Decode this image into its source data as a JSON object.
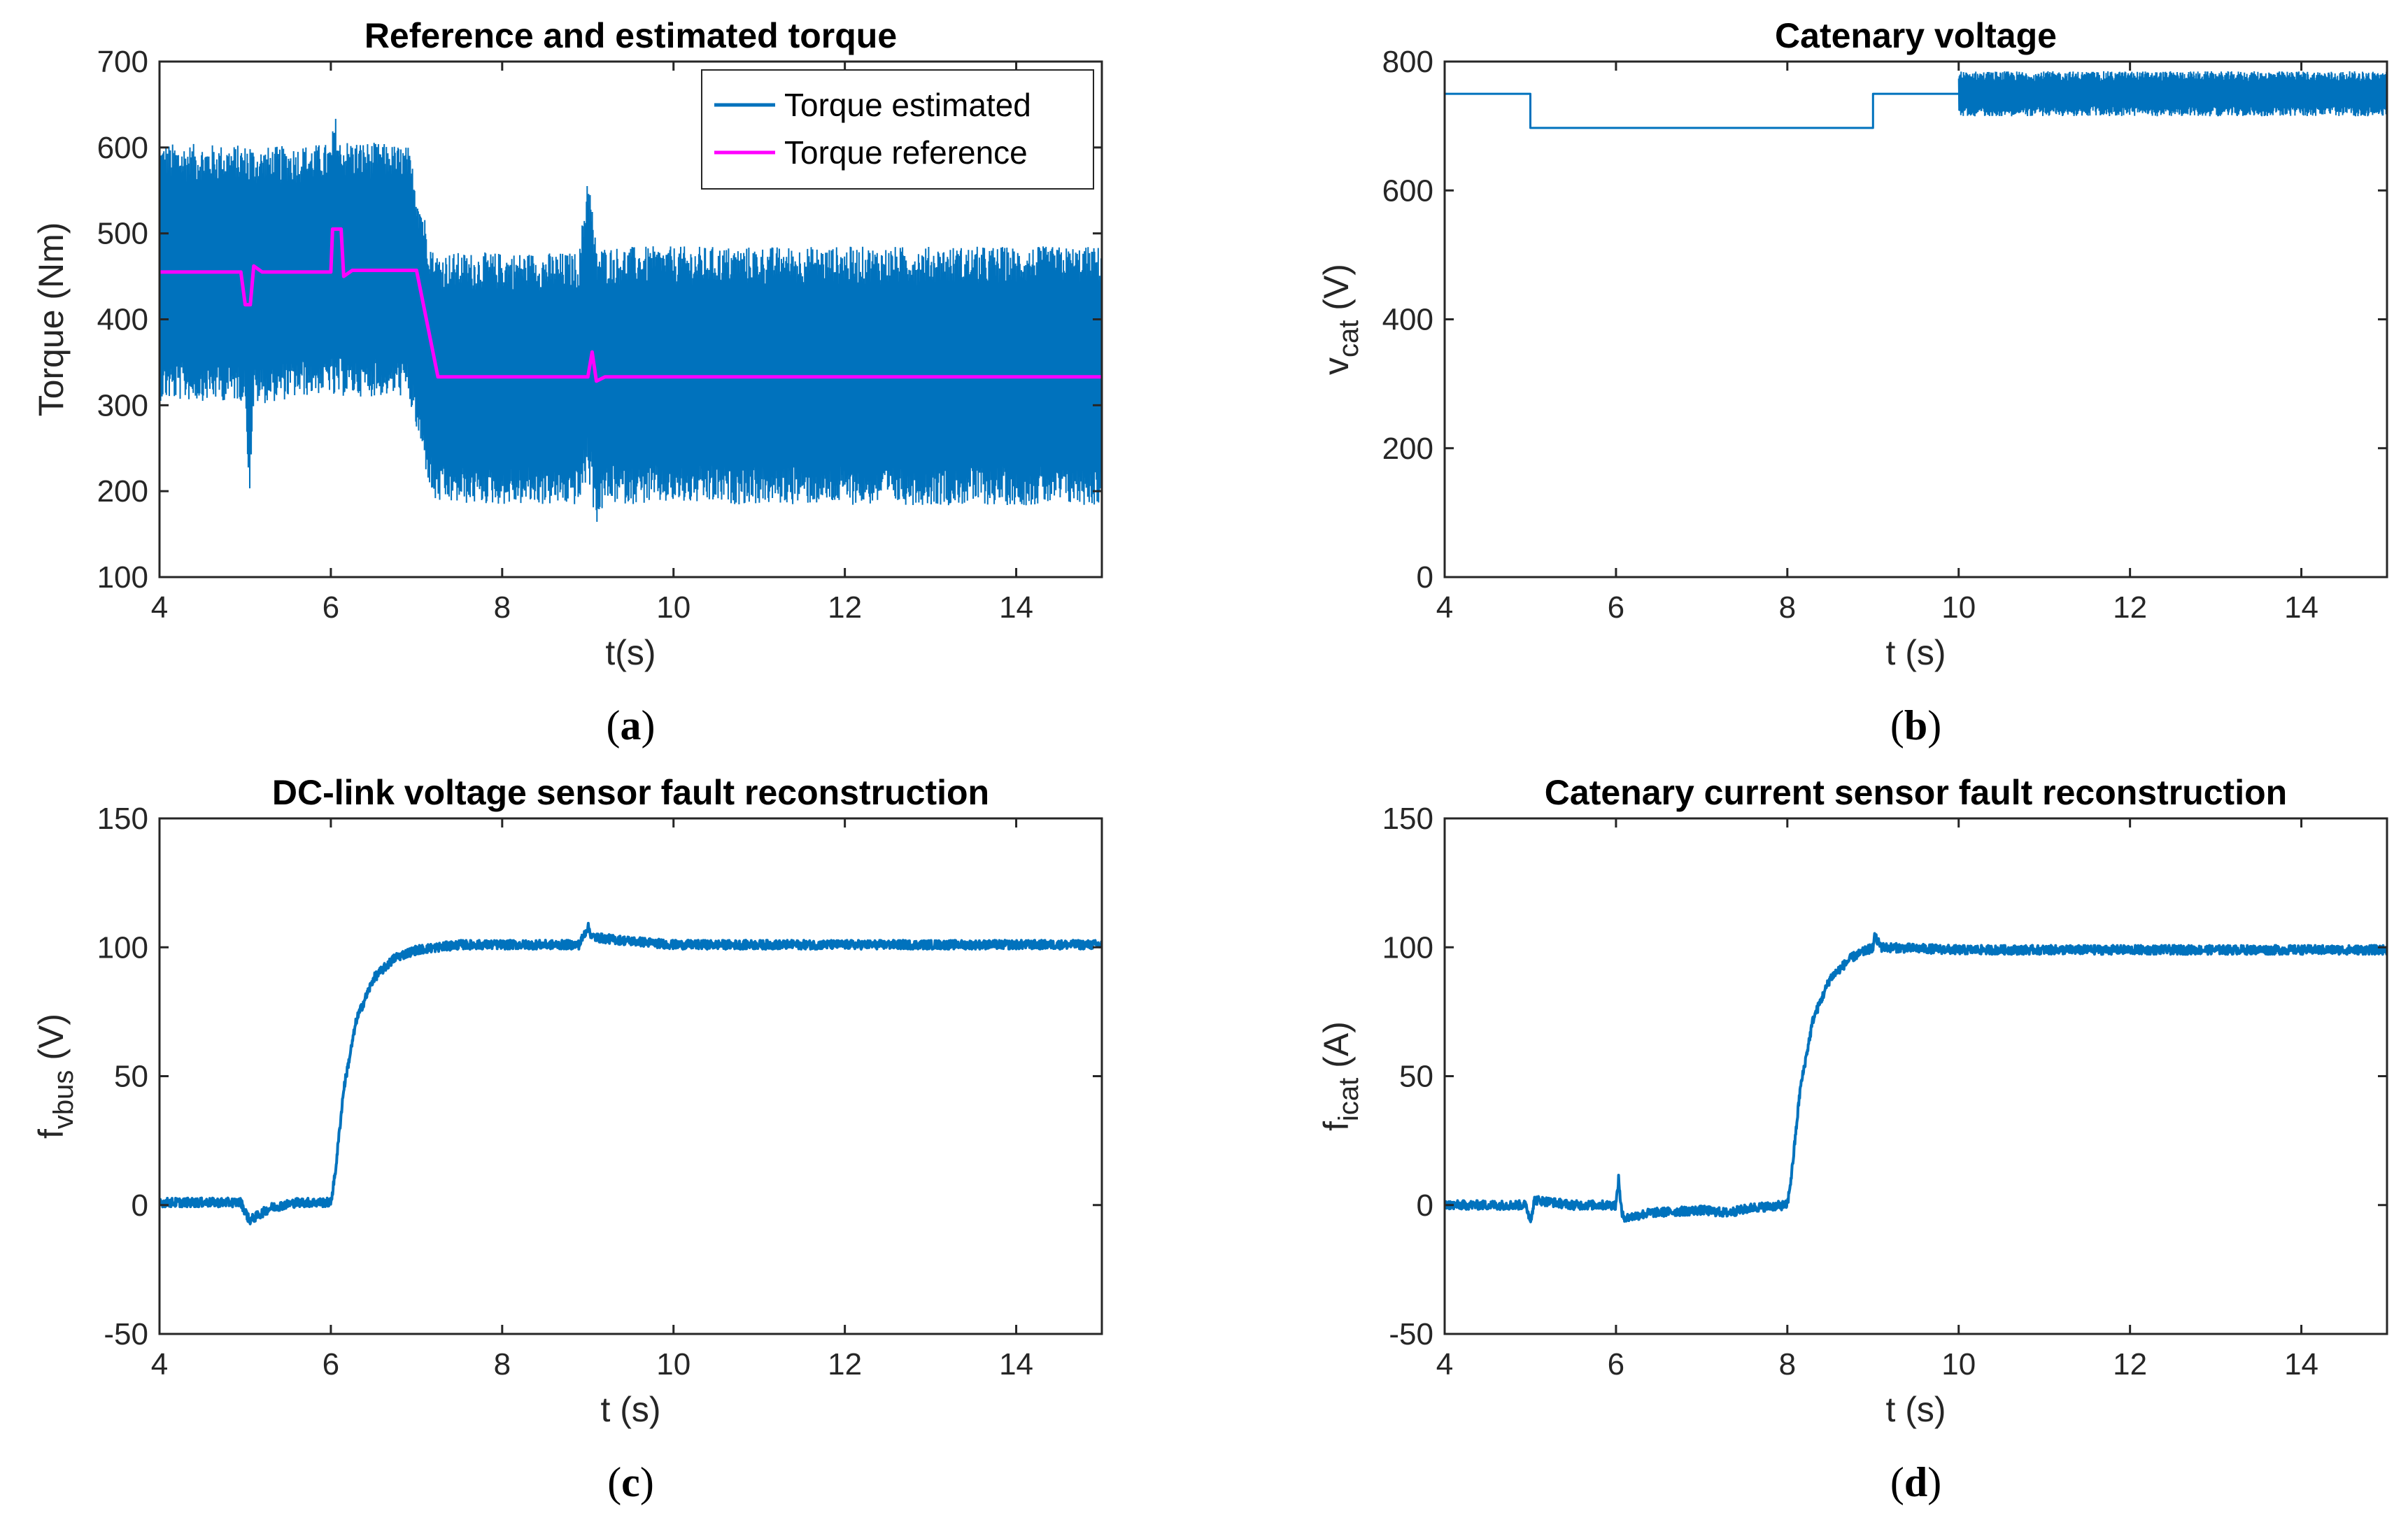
{
  "figure": {
    "series_color": "#0072BD",
    "reference_color": "#FF00FF"
  },
  "chart_data": [
    {
      "id": "a",
      "type": "line",
      "panel_label": "a",
      "title": "Reference and estimated torque",
      "xlabel": "t(s)",
      "ylabel": "Torque (Nm)",
      "xlim": [
        4,
        15
      ],
      "ylim": [
        100,
        700
      ],
      "xticks": [
        4,
        6,
        8,
        10,
        12,
        14
      ],
      "yticks": [
        100,
        200,
        300,
        400,
        500,
        600,
        700
      ],
      "legend": {
        "placement": "top-right"
      },
      "series": [
        {
          "name": "Torque estimated",
          "color": "#0072BD",
          "style": "noisy-band",
          "upper_envelope": [
            [
              4,
              605
            ],
            [
              5,
              603
            ],
            [
              5.05,
              612
            ],
            [
              5.1,
              600
            ],
            [
              6,
              605
            ],
            [
              6.05,
              640
            ],
            [
              6.1,
              610
            ],
            [
              6.9,
              602
            ],
            [
              7.2,
              478
            ],
            [
              8.9,
              478
            ],
            [
              9.0,
              580
            ],
            [
              9.1,
              485
            ],
            [
              15,
              485
            ]
          ],
          "lower_envelope": [
            [
              4,
              305
            ],
            [
              5,
              305
            ],
            [
              5.05,
              190
            ],
            [
              5.1,
              300
            ],
            [
              6,
              315
            ],
            [
              6.05,
              300
            ],
            [
              6.1,
              310
            ],
            [
              6.9,
              310
            ],
            [
              7.2,
              185
            ],
            [
              8.9,
              183
            ],
            [
              9.0,
              215
            ],
            [
              9.1,
              160
            ],
            [
              9.2,
              185
            ],
            [
              15,
              183
            ]
          ]
        },
        {
          "name": "Torque reference",
          "color": "#FF00FF",
          "points": [
            [
              4,
              455
            ],
            [
              4.95,
              455
            ],
            [
              5.0,
              417
            ],
            [
              5.06,
              417
            ],
            [
              5.1,
              462
            ],
            [
              5.2,
              455
            ],
            [
              6.0,
              455
            ],
            [
              6.02,
              505
            ],
            [
              6.12,
              505
            ],
            [
              6.15,
              450
            ],
            [
              6.25,
              457
            ],
            [
              7.0,
              457
            ],
            [
              7.25,
              333
            ],
            [
              9.0,
              333
            ],
            [
              9.05,
              362
            ],
            [
              9.1,
              328
            ],
            [
              9.2,
              333
            ],
            [
              15,
              333
            ]
          ]
        }
      ]
    },
    {
      "id": "b",
      "type": "line",
      "panel_label": "b",
      "title": "Catenary voltage",
      "xlabel": "t (s)",
      "ylabel": "v",
      "ylabel_subscript": "cat",
      "ylabel_unit": " (V)",
      "xlim": [
        4,
        15
      ],
      "ylim": [
        0,
        800
      ],
      "xticks": [
        4,
        6,
        8,
        10,
        12,
        14
      ],
      "yticks": [
        0,
        200,
        400,
        600,
        800
      ],
      "series": [
        {
          "name": "v_cat",
          "color": "#0072BD",
          "points": [
            [
              4,
              750
            ],
            [
              5,
              750
            ],
            [
              5,
              697
            ],
            [
              9,
              697
            ],
            [
              9,
              750
            ],
            [
              10,
              750
            ]
          ],
          "noisy_band": {
            "x_start": 10,
            "x_end": 15,
            "upper": 785,
            "lower": 715
          }
        }
      ]
    },
    {
      "id": "c",
      "type": "line",
      "panel_label": "c",
      "title": "DC-link voltage sensor fault reconstruction",
      "xlabel": "t (s)",
      "ylabel": "f",
      "ylabel_subscript": "vbus",
      "ylabel_unit": " (V)",
      "xlim": [
        4,
        15
      ],
      "ylim": [
        -50,
        150
      ],
      "xticks": [
        4,
        6,
        8,
        10,
        12,
        14
      ],
      "yticks": [
        -50,
        0,
        50,
        100,
        150
      ],
      "series": [
        {
          "name": "f_vbus",
          "color": "#0072BD",
          "style": "thick-noisy",
          "points": [
            [
              4,
              1
            ],
            [
              4.95,
              1
            ],
            [
              5.05,
              -6
            ],
            [
              5.3,
              -1
            ],
            [
              5.6,
              1
            ],
            [
              6.0,
              1
            ],
            [
              6.05,
              12
            ],
            [
              6.15,
              45
            ],
            [
              6.3,
              72
            ],
            [
              6.5,
              88
            ],
            [
              6.75,
              96
            ],
            [
              7.0,
              99
            ],
            [
              7.5,
              101
            ],
            [
              8.9,
              101
            ],
            [
              9.0,
              108
            ],
            [
              9.05,
              104
            ],
            [
              9.3,
              103
            ],
            [
              10,
              101
            ],
            [
              15,
              101
            ]
          ]
        }
      ]
    },
    {
      "id": "d",
      "type": "line",
      "panel_label": "d",
      "title": "Catenary current sensor fault reconstruction",
      "xlabel": "t (s)",
      "ylabel": "f",
      "ylabel_subscript": "icat",
      "ylabel_unit": " (A)",
      "xlim": [
        4,
        15
      ],
      "ylim": [
        -50,
        150
      ],
      "xticks": [
        4,
        6,
        8,
        10,
        12,
        14
      ],
      "yticks": [
        -50,
        0,
        50,
        100,
        150
      ],
      "series": [
        {
          "name": "f_icat",
          "color": "#0072BD",
          "style": "thick-noisy",
          "points": [
            [
              4,
              0
            ],
            [
              4.95,
              0
            ],
            [
              5.0,
              -6
            ],
            [
              5.05,
              2
            ],
            [
              5.5,
              0
            ],
            [
              6.0,
              0
            ],
            [
              6.03,
              10
            ],
            [
              6.07,
              -4
            ],
            [
              6.12,
              -5
            ],
            [
              6.4,
              -3
            ],
            [
              7.0,
              -2
            ],
            [
              7.3,
              -3
            ],
            [
              7.6,
              -1
            ],
            [
              8.0,
              0
            ],
            [
              8.05,
              12
            ],
            [
              8.15,
              45
            ],
            [
              8.3,
              72
            ],
            [
              8.5,
              88
            ],
            [
              8.75,
              96
            ],
            [
              9.0,
              100
            ],
            [
              9.02,
              104
            ],
            [
              9.1,
              100
            ],
            [
              10,
              99
            ],
            [
              15,
              99
            ]
          ]
        }
      ]
    }
  ]
}
